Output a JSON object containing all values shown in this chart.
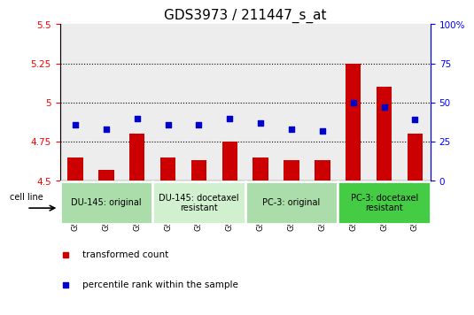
{
  "title": "GDS3973 / 211447_s_at",
  "samples": [
    "GSM827130",
    "GSM827131",
    "GSM827132",
    "GSM827133",
    "GSM827134",
    "GSM827135",
    "GSM827136",
    "GSM827137",
    "GSM827138",
    "GSM827139",
    "GSM827140",
    "GSM827141"
  ],
  "red_values": [
    4.65,
    4.57,
    4.8,
    4.65,
    4.63,
    4.75,
    4.65,
    4.63,
    4.63,
    5.25,
    5.1,
    4.8
  ],
  "blue_values": [
    36,
    33,
    40,
    36,
    36,
    40,
    37,
    33,
    32,
    50,
    47,
    39
  ],
  "ylim_left": [
    4.5,
    5.5
  ],
  "ylim_right": [
    0,
    100
  ],
  "yticks_left": [
    4.5,
    4.75,
    5.0,
    5.25,
    5.5
  ],
  "yticks_right": [
    0,
    25,
    50,
    75,
    100
  ],
  "ytick_labels_left": [
    "4.5",
    "4.75",
    "5",
    "5.25",
    "5.5"
  ],
  "ytick_labels_right": [
    "0",
    "25",
    "50",
    "75",
    "100%"
  ],
  "hlines": [
    4.75,
    5.0,
    5.25
  ],
  "cell_line_groups": [
    {
      "label": "DU-145: original",
      "start": 0,
      "end": 2,
      "color": "#aaddaa"
    },
    {
      "label": "DU-145: docetaxel\nresistant",
      "start": 3,
      "end": 5,
      "color": "#d0f0d0"
    },
    {
      "label": "PC-3: original",
      "start": 6,
      "end": 8,
      "color": "#aaddaa"
    },
    {
      "label": "PC-3: docetaxel\nresistant",
      "start": 9,
      "end": 11,
      "color": "#44cc44"
    }
  ],
  "bar_color": "#cc0000",
  "dot_color": "#0000cc",
  "bar_width": 0.5,
  "legend_red": "transformed count",
  "legend_blue": "percentile rank within the sample",
  "cell_line_label": "cell line",
  "title_fontsize": 11,
  "tick_fontsize": 7.5,
  "sample_fontsize": 6.5,
  "cell_fontsize": 7,
  "legend_fontsize": 7.5
}
